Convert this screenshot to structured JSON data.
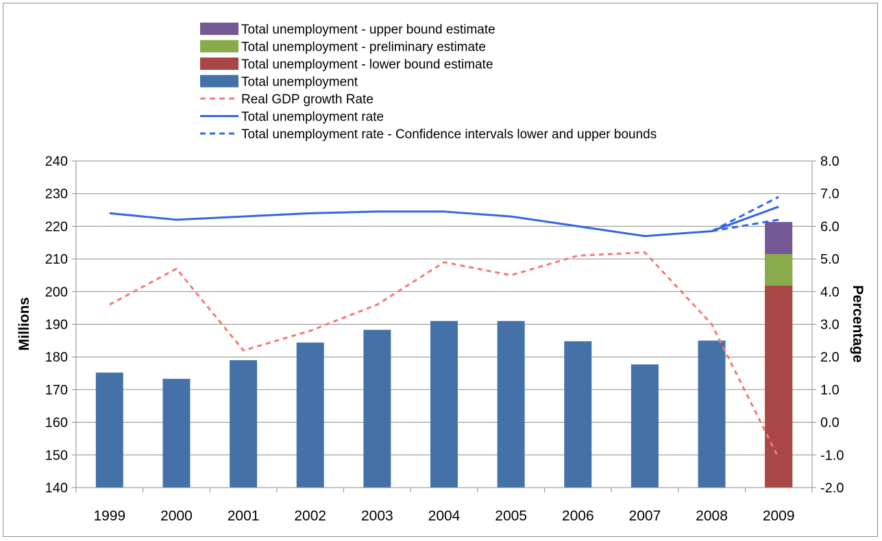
{
  "chart_data": {
    "type": "bar",
    "categories": [
      "1999",
      "2000",
      "2001",
      "2002",
      "2003",
      "2004",
      "2005",
      "2006",
      "2007",
      "2008",
      "2009"
    ],
    "ylabel_left": "Millions",
    "ylabel_right": "Percentage",
    "ylim_left": [
      140,
      240
    ],
    "ylim_right": [
      -2.0,
      8.0
    ],
    "yticks_left": [
      "140",
      "150",
      "160",
      "170",
      "180",
      "190",
      "200",
      "210",
      "220",
      "230",
      "240"
    ],
    "yticks_right": [
      "-2.0",
      "-1.0",
      "0.0",
      "1.0",
      "2.0",
      "3.0",
      "4.0",
      "5.0",
      "6.0",
      "7.0",
      "8.0"
    ],
    "grid": true,
    "legend_position": "top",
    "bar_series": [
      {
        "name": "Total unemployment",
        "color": "#4472a8",
        "values": [
          175.2,
          173.3,
          179.0,
          184.4,
          188.3,
          191.0,
          191.0,
          184.8,
          177.7,
          185.0,
          null
        ]
      },
      {
        "name": "Total unemployment - lower bound estimate",
        "color": "#a84745",
        "values": [
          null,
          null,
          null,
          null,
          null,
          null,
          null,
          null,
          null,
          null,
          201.8
        ]
      },
      {
        "name": "Total unemployment - preliminary estimate",
        "color": "#8aab4b",
        "values": [
          null,
          null,
          null,
          null,
          null,
          null,
          null,
          null,
          null,
          null,
          211.5
        ]
      },
      {
        "name": "Total unemployment - upper bound estimate",
        "color": "#735895",
        "values": [
          null,
          null,
          null,
          null,
          null,
          null,
          null,
          null,
          null,
          null,
          221.3
        ]
      }
    ],
    "line_series": [
      {
        "name": "Real GDP growth Rate",
        "color": "#f47a72",
        "style": "dashed",
        "values": [
          3.6,
          4.7,
          2.2,
          2.8,
          3.6,
          4.9,
          4.5,
          5.1,
          5.2,
          3.0,
          -1.1
        ]
      },
      {
        "name": "Total unemployment rate",
        "color": "#3366e6",
        "style": "solid",
        "values": [
          6.4,
          6.2,
          6.3,
          6.4,
          6.45,
          6.45,
          6.3,
          6.0,
          5.7,
          5.85,
          6.6
        ]
      },
      {
        "name": "Total unemployment rate - Confidence intervals lower and upper bounds",
        "color": "#3366e6",
        "style": "dashed",
        "segments": [
          {
            "x": [
              "2008",
              "2009"
            ],
            "values": [
              5.85,
              6.9
            ]
          },
          {
            "x": [
              "2008",
              "2009"
            ],
            "values": [
              5.85,
              6.2
            ]
          }
        ]
      }
    ],
    "legend_order": [
      "Total unemployment - upper bound estimate",
      "Total unemployment - preliminary estimate",
      "Total unemployment - lower bound estimate",
      "Total unemployment",
      "Real GDP growth Rate",
      "Total unemployment rate",
      "Total unemployment rate - Confidence intervals lower and upper bounds"
    ]
  },
  "legend_items": [
    {
      "label": "Total unemployment - upper bound estimate",
      "kind": "box",
      "color": "#735895"
    },
    {
      "label": "Total unemployment - preliminary estimate",
      "kind": "box",
      "color": "#8aab4b"
    },
    {
      "label": "Total unemployment - lower bound estimate",
      "kind": "box",
      "color": "#a84745"
    },
    {
      "label": "Total unemployment",
      "kind": "box",
      "color": "#4472a8"
    },
    {
      "label": "Real GDP growth Rate",
      "kind": "dash",
      "color": "#f47a72"
    },
    {
      "label": "Total unemployment rate",
      "kind": "line",
      "color": "#3366e6"
    },
    {
      "label": "Total unemployment rate - Confidence intervals lower and upper bounds",
      "kind": "dash",
      "color": "#3366e6"
    }
  ]
}
